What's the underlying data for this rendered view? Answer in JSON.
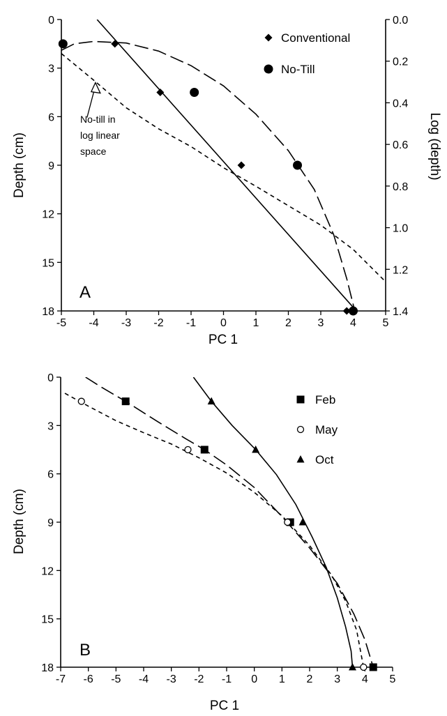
{
  "chart_data": [
    {
      "panel_label": "A",
      "type": "scatter",
      "xlabel": "PC 1",
      "ylabel": "Depth (cm)",
      "y2label": "Log (depth)",
      "xlim": [
        -5,
        5
      ],
      "ylim": [
        0,
        18
      ],
      "y_inverted": true,
      "x_ticks": [
        -5,
        -4,
        -3,
        -2,
        -1,
        0,
        1,
        2,
        3,
        4,
        5
      ],
      "y_ticks": [
        0,
        3,
        6,
        9,
        12,
        15,
        18
      ],
      "y2lim": [
        0.0,
        1.4
      ],
      "y2_ticks": [
        "0.0",
        "0.2",
        "0.4",
        "0.6",
        "0.8",
        "1.0",
        "1.2",
        "1.4"
      ],
      "legend_position": "top-right",
      "series": [
        {
          "name": "Conventional",
          "marker": "diamond",
          "points": [
            [
              -3.35,
              1.5
            ],
            [
              -1.95,
              4.5
            ],
            [
              0.55,
              9
            ],
            [
              3.8,
              18
            ]
          ],
          "line": {
            "style": "solid",
            "points": [
              [
                -3.9,
                0
              ],
              [
                4.1,
                18
              ]
            ]
          }
        },
        {
          "name": "No-Till",
          "marker": "filled-circle",
          "points": [
            [
              -4.95,
              1.5
            ],
            [
              -0.9,
              4.5
            ],
            [
              2.28,
              9
            ],
            [
              4.0,
              18
            ]
          ],
          "line": {
            "style": "long-dash",
            "points": [
              [
                -5.0,
                1.9
              ],
              [
                -4.6,
                1.5
              ],
              [
                -4.0,
                1.35
              ],
              [
                -3.0,
                1.45
              ],
              [
                -2.0,
                1.95
              ],
              [
                -1.0,
                2.85
              ],
              [
                0.0,
                4.1
              ],
              [
                1.0,
                5.85
              ],
              [
                2.0,
                8.1
              ],
              [
                2.8,
                10.5
              ],
              [
                3.4,
                13.3
              ],
              [
                3.8,
                16.0
              ],
              [
                4.05,
                18
              ]
            ]
          }
        },
        {
          "name": "No-till in log linear space",
          "marker": "none",
          "line": {
            "style": "short-dash",
            "points": [
              [
                -5.0,
                2.1
              ],
              [
                -4.0,
                3.75
              ],
              [
                -3.0,
                5.45
              ],
              [
                -2.0,
                6.75
              ],
              [
                -1.0,
                7.85
              ],
              [
                0.0,
                9.15
              ],
              [
                1.0,
                10.3
              ],
              [
                2.0,
                11.5
              ],
              [
                3.0,
                12.7
              ],
              [
                4.0,
                14.2
              ],
              [
                5.0,
                16.2
              ]
            ]
          }
        }
      ],
      "annotation": {
        "lines": [
          "No-till  in",
          "log linear",
          "space"
        ],
        "arrow_target": [
          -3.95,
          3.9
        ]
      }
    },
    {
      "panel_label": "B",
      "type": "scatter",
      "xlabel": "PC 1",
      "ylabel": "Depth (cm)",
      "xlim": [
        -7,
        5
      ],
      "ylim": [
        0,
        18
      ],
      "y_inverted": true,
      "x_ticks": [
        -7,
        -6,
        -5,
        -4,
        -3,
        -2,
        -1,
        0,
        1,
        2,
        3,
        4,
        5
      ],
      "y_ticks": [
        0,
        3,
        6,
        9,
        12,
        15,
        18
      ],
      "legend_position": "top-right",
      "series": [
        {
          "name": "Feb",
          "marker": "filled-square",
          "points": [
            [
              -4.65,
              1.5
            ],
            [
              -1.8,
              4.5
            ],
            [
              1.3,
              9
            ],
            [
              4.3,
              18
            ]
          ],
          "line": {
            "style": "long-dash",
            "points": [
              [
                -6.1,
                0
              ],
              [
                -5.5,
                0.65
              ],
              [
                -4.65,
                1.5
              ],
              [
                -3.5,
                2.75
              ],
              [
                -2.5,
                3.8
              ],
              [
                -1.8,
                4.5
              ],
              [
                -1.0,
                5.45
              ],
              [
                0.0,
                6.85
              ],
              [
                1.0,
                8.65
              ],
              [
                2.0,
                10.6
              ],
              [
                3.0,
                12.8
              ],
              [
                3.6,
                14.7
              ],
              [
                4.0,
                16.3
              ],
              [
                4.3,
                18
              ]
            ]
          }
        },
        {
          "name": "May",
          "marker": "open-circle",
          "points": [
            [
              -6.25,
              1.5
            ],
            [
              -2.4,
              4.5
            ],
            [
              1.2,
              9
            ],
            [
              3.95,
              18
            ]
          ],
          "line": {
            "style": "short-dash",
            "points": [
              [
                -6.85,
                1.0
              ],
              [
                -6.0,
                1.8
              ],
              [
                -5.0,
                2.7
              ],
              [
                -4.0,
                3.45
              ],
              [
                -3.0,
                4.15
              ],
              [
                -2.0,
                5.0
              ],
              [
                -1.0,
                5.95
              ],
              [
                0.0,
                7.15
              ],
              [
                1.0,
                8.6
              ],
              [
                2.0,
                10.45
              ],
              [
                2.8,
                12.3
              ],
              [
                3.3,
                13.9
              ],
              [
                3.7,
                15.7
              ],
              [
                3.95,
                18
              ]
            ]
          }
        },
        {
          "name": "Oct",
          "marker": "filled-triangle",
          "points": [
            [
              -1.55,
              1.5
            ],
            [
              0.05,
              4.5
            ],
            [
              1.75,
              9
            ],
            [
              3.55,
              18
            ]
          ],
          "line": {
            "style": "solid",
            "points": [
              [
                -2.2,
                0
              ],
              [
                -1.55,
                1.5
              ],
              [
                -0.8,
                3.0
              ],
              [
                0.05,
                4.5
              ],
              [
                0.8,
                6.05
              ],
              [
                1.5,
                7.9
              ],
              [
                2.1,
                9.95
              ],
              [
                2.6,
                11.8
              ],
              [
                3.0,
                13.7
              ],
              [
                3.3,
                15.5
              ],
              [
                3.5,
                17.0
              ],
              [
                3.55,
                18
              ]
            ]
          }
        }
      ]
    }
  ]
}
